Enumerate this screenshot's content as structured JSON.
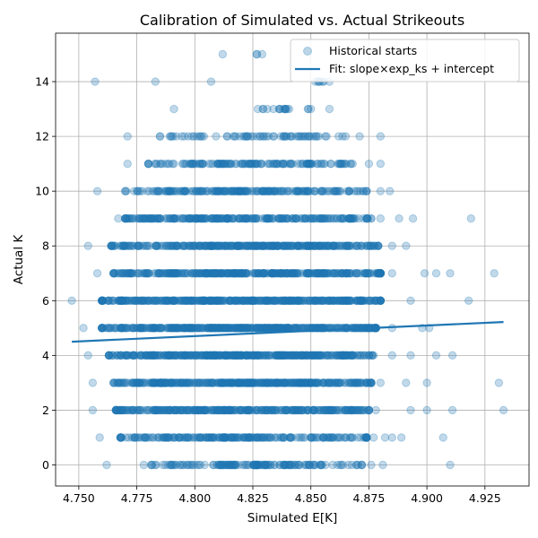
{
  "chart_data": {
    "type": "scatter",
    "title": "Calibration of Simulated vs. Actual Strikeouts",
    "xlabel": "Simulated E[K]",
    "ylabel": "Actual K",
    "xlim": [
      4.74,
      4.944
    ],
    "ylim": [
      -0.77,
      15.77
    ],
    "x_ticks": [
      4.75,
      4.775,
      4.8,
      4.825,
      4.85,
      4.875,
      4.9,
      4.925
    ],
    "x_tick_labels": [
      "4.750",
      "4.775",
      "4.800",
      "4.825",
      "4.850",
      "4.875",
      "4.900",
      "4.925"
    ],
    "y_ticks": [
      0,
      2,
      4,
      6,
      8,
      10,
      12,
      14
    ],
    "y_tick_labels": [
      "0",
      "2",
      "4",
      "6",
      "8",
      "10",
      "12",
      "14"
    ],
    "grid": true,
    "legend_position": "top-right",
    "colors": {
      "series": "#1f77b4",
      "grid": "#b0b0b0"
    },
    "series": [
      {
        "name": "Historical starts",
        "kind": "scatter",
        "rows": [
          {
            "y": 0,
            "min": 4.762,
            "max": 4.876,
            "core_min": 4.778,
            "core_max": 4.872,
            "n": 150,
            "outliers": [
              4.881,
              4.91
            ]
          },
          {
            "y": 1,
            "min": 4.759,
            "max": 4.877,
            "core_min": 4.768,
            "core_max": 4.874,
            "n": 220,
            "outliers": [
              4.882,
              4.885,
              4.889,
              4.907
            ]
          },
          {
            "y": 2,
            "min": 4.756,
            "max": 4.878,
            "core_min": 4.766,
            "core_max": 4.875,
            "n": 320,
            "outliers": [
              4.893,
              4.9,
              4.911,
              4.933
            ]
          },
          {
            "y": 3,
            "min": 4.756,
            "max": 4.88,
            "core_min": 4.765,
            "core_max": 4.876,
            "n": 380,
            "outliers": [
              4.891,
              4.9,
              4.931
            ]
          },
          {
            "y": 4,
            "min": 4.754,
            "max": 4.885,
            "core_min": 4.763,
            "core_max": 4.877,
            "n": 400,
            "outliers": [
              4.893,
              4.904,
              4.911
            ]
          },
          {
            "y": 5,
            "min": 4.752,
            "max": 4.885,
            "core_min": 4.76,
            "core_max": 4.878,
            "n": 430,
            "outliers": [
              4.898,
              4.901
            ]
          },
          {
            "y": 6,
            "min": 4.747,
            "max": 4.893,
            "core_min": 4.76,
            "core_max": 4.88,
            "n": 420,
            "outliers": [
              4.918
            ]
          },
          {
            "y": 7,
            "min": 4.758,
            "max": 4.885,
            "core_min": 4.765,
            "core_max": 4.88,
            "n": 380,
            "outliers": [
              4.899,
              4.904,
              4.91,
              4.929
            ]
          },
          {
            "y": 8,
            "min": 4.754,
            "max": 4.885,
            "core_min": 4.764,
            "core_max": 4.879,
            "n": 330,
            "outliers": [
              4.891
            ]
          },
          {
            "y": 9,
            "min": 4.767,
            "max": 4.88,
            "core_min": 4.77,
            "core_max": 4.876,
            "n": 260,
            "outliers": [
              4.888,
              4.894,
              4.919
            ]
          },
          {
            "y": 10,
            "min": 4.758,
            "max": 4.884,
            "core_min": 4.77,
            "core_max": 4.874,
            "n": 200,
            "outliers": [
              4.88
            ]
          },
          {
            "y": 11,
            "min": 4.771,
            "max": 4.875,
            "core_min": 4.78,
            "core_max": 4.868,
            "n": 140,
            "outliers": [
              4.88
            ]
          },
          {
            "y": 12,
            "min": 4.771,
            "max": 4.871,
            "core_min": 4.785,
            "core_max": 4.865,
            "n": 70,
            "outliers": [
              4.88
            ]
          },
          {
            "y": 13,
            "min": 4.791,
            "max": 4.858,
            "core_min": 4.825,
            "core_max": 4.85,
            "n": 18,
            "outliers": []
          },
          {
            "y": 14,
            "min": 4.757,
            "max": 4.858,
            "core_min": 4.85,
            "core_max": 4.858,
            "n": 6,
            "outliers": [
              4.783,
              4.807
            ]
          },
          {
            "y": 15,
            "min": 4.812,
            "max": 4.829,
            "core_min": 4.812,
            "core_max": 4.829,
            "n": 2,
            "outliers": []
          }
        ]
      },
      {
        "name": "Fit: slope×exp_ks + intercept",
        "kind": "line",
        "x": [
          4.747,
          4.933
        ],
        "y": [
          4.5,
          5.22
        ]
      }
    ]
  }
}
